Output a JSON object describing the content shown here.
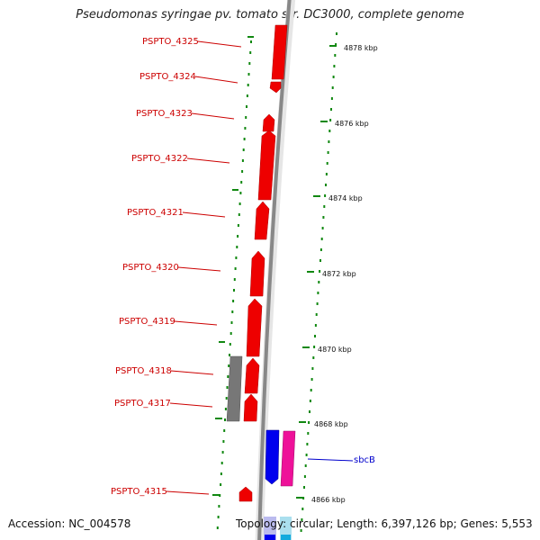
{
  "title": "Pseudomonas syringae pv. tomato str. DC3000, complete genome",
  "footer": {
    "accession": "Accession: NC_004578",
    "topology": "Topology: circular; Length: 6,397,126 bp; Genes: 5,553"
  },
  "genes": [
    {
      "label": "PSPTO_4325",
      "color": "#ee0000"
    },
    {
      "label": "PSPTO_4324",
      "color": "#ee0000"
    },
    {
      "label": "PSPTO_4323",
      "color": "#ee0000"
    },
    {
      "label": "PSPTO_4322",
      "color": "#ee0000"
    },
    {
      "label": "PSPTO_4321",
      "color": "#ee0000"
    },
    {
      "label": "PSPTO_4320",
      "color": "#ee0000"
    },
    {
      "label": "PSPTO_4319",
      "color": "#ee0000"
    },
    {
      "label": "PSPTO_4318",
      "color": "#ee0000"
    },
    {
      "label": "PSPTO_4317",
      "color": "#ee0000"
    },
    {
      "label": "PSPTO_4315",
      "color": "#ee0000"
    }
  ],
  "features": [
    {
      "label": "sbcB",
      "color": "#0000ee"
    }
  ],
  "scale_ticks": [
    "4878 kbp",
    "4876 kbp",
    "4874 kbp",
    "4872 kbp",
    "4870 kbp",
    "4868 kbp",
    "4866 kbp"
  ],
  "colors": {
    "forward_gene": "#ee0000",
    "reverse_gene": "#0000ee",
    "rna": "#ee1199",
    "pseudogene": "#777777",
    "backbone": "#888888",
    "gc_dots": "#118811",
    "label_line_red": "#cc0000"
  }
}
